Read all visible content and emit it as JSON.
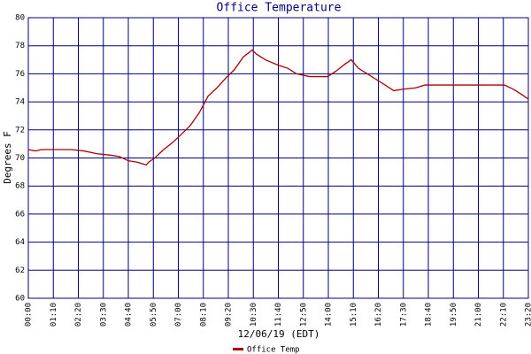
{
  "chart_data": {
    "type": "line",
    "title": "Office Temperature",
    "x_label": "12/06/19 (EDT)",
    "y_label": "Degrees F",
    "x": [
      0,
      20,
      37,
      119,
      156,
      193,
      230,
      255,
      280,
      305,
      330,
      337,
      354,
      379,
      404,
      429,
      453,
      478,
      503,
      528,
      553,
      577,
      602,
      627,
      639,
      664,
      701,
      726,
      751,
      788,
      838,
      862,
      887,
      904,
      924,
      949,
      974,
      999,
      1023,
      1048,
      1085,
      1110,
      1160,
      1259,
      1333,
      1358,
      1383,
      1400
    ],
    "series": [
      {
        "name": "Office Temp",
        "color": "#aa0000",
        "values": [
          70.6,
          70.5,
          70.6,
          70.6,
          70.5,
          70.3,
          70.2,
          70.1,
          69.8,
          69.7,
          69.5,
          69.7,
          70.0,
          70.6,
          71.1,
          71.7,
          72.3,
          73.2,
          74.4,
          75.0,
          75.7,
          76.3,
          77.2,
          77.7,
          77.4,
          77.0,
          76.6,
          76.4,
          76.0,
          75.8,
          75.8,
          76.2,
          76.7,
          77.0,
          76.4,
          76.0,
          75.6,
          75.2,
          74.8,
          74.9,
          75.0,
          75.2,
          75.2,
          75.2,
          75.2,
          74.9,
          74.5,
          74.2
        ]
      }
    ],
    "xlim": [
      0,
      1400
    ],
    "xticks": [
      {
        "value": 0,
        "label": "00:00"
      },
      {
        "value": 70,
        "label": "01:10"
      },
      {
        "value": 140,
        "label": "02:20"
      },
      {
        "value": 210,
        "label": "03:30"
      },
      {
        "value": 280,
        "label": "04:40"
      },
      {
        "value": 350,
        "label": "05:50"
      },
      {
        "value": 420,
        "label": "07:00"
      },
      {
        "value": 490,
        "label": "08:10"
      },
      {
        "value": 560,
        "label": "09:20"
      },
      {
        "value": 630,
        "label": "10:30"
      },
      {
        "value": 700,
        "label": "11:40"
      },
      {
        "value": 770,
        "label": "12:50"
      },
      {
        "value": 840,
        "label": "14:00"
      },
      {
        "value": 910,
        "label": "15:10"
      },
      {
        "value": 980,
        "label": "16:20"
      },
      {
        "value": 1050,
        "label": "17:30"
      },
      {
        "value": 1120,
        "label": "18:40"
      },
      {
        "value": 1190,
        "label": "19:50"
      },
      {
        "value": 1260,
        "label": "21:00"
      },
      {
        "value": 1330,
        "label": "22:10"
      },
      {
        "value": 1400,
        "label": "23:20"
      }
    ],
    "ylim": [
      60,
      80
    ],
    "yticks": [
      60,
      62,
      64,
      66,
      68,
      70,
      72,
      74,
      76,
      78,
      80
    ],
    "grid": true,
    "grid_color": "#000080",
    "legend": "bottom"
  }
}
